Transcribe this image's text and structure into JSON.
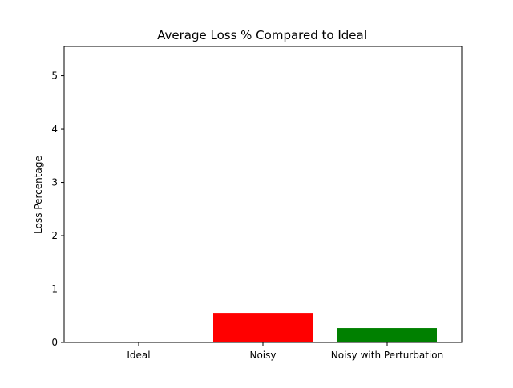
{
  "chart_data": {
    "type": "bar",
    "title": "Average Loss % Compared to Ideal",
    "xlabel": "",
    "ylabel": "Loss Percentage",
    "categories": [
      "Ideal",
      "Noisy",
      "Noisy with Perturbation"
    ],
    "values": [
      0,
      0.54,
      0.27
    ],
    "colors": [
      "#0000ff",
      "#ff0000",
      "#008000"
    ],
    "ylim": [
      0,
      5.55
    ],
    "yticks": [
      0,
      1,
      2,
      3,
      4,
      5
    ],
    "grid": false,
    "legend": "none"
  }
}
